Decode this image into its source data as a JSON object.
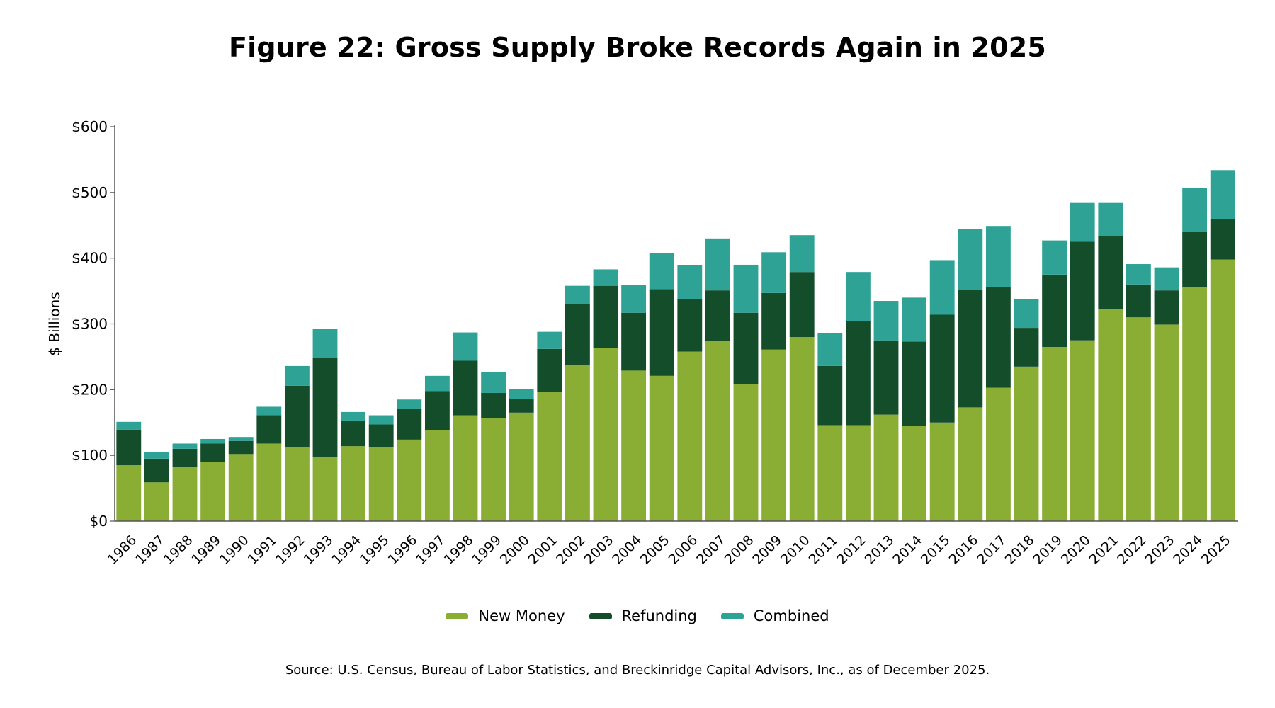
{
  "chart_data": {
    "type": "bar",
    "stacked": true,
    "title": "Figure 22: Gross Supply Broke Records Again in 2025",
    "ylabel": "$ Billions",
    "xlabel": "",
    "ylim": [
      0,
      600
    ],
    "yticks": [
      0,
      100,
      200,
      300,
      400,
      500,
      600
    ],
    "ytick_labels": [
      "$0",
      "$100",
      "$200",
      "$300",
      "$400",
      "$500",
      "$600"
    ],
    "grid": false,
    "legend_position": "bottom-center",
    "categories": [
      "1986",
      "1987",
      "1988",
      "1989",
      "1990",
      "1991",
      "1992",
      "1993",
      "1994",
      "1995",
      "1996",
      "1997",
      "1998",
      "1999",
      "2000",
      "2001",
      "2002",
      "2003",
      "2004",
      "2005",
      "2006",
      "2007",
      "2008",
      "2009",
      "2010",
      "2011",
      "2012",
      "2013",
      "2014",
      "2015",
      "2016",
      "2017",
      "2018",
      "2019",
      "2020",
      "2021",
      "2022",
      "2023",
      "2024",
      "2025"
    ],
    "series": [
      {
        "name": "New Money",
        "color": "#8aad33",
        "values": [
          85,
          59,
          82,
          90,
          102,
          118,
          112,
          97,
          114,
          112,
          124,
          138,
          161,
          157,
          165,
          197,
          238,
          263,
          229,
          221,
          258,
          274,
          208,
          261,
          280,
          146,
          146,
          162,
          145,
          150,
          173,
          203,
          235,
          265,
          275,
          322,
          310,
          299,
          356,
          398
        ]
      },
      {
        "name": "Refunding",
        "color": "#134d2a",
        "values": [
          54,
          36,
          28,
          28,
          20,
          43,
          94,
          151,
          39,
          35,
          47,
          60,
          83,
          38,
          21,
          65,
          92,
          95,
          88,
          132,
          80,
          77,
          109,
          86,
          99,
          90,
          158,
          113,
          128,
          164,
          179,
          153,
          59,
          110,
          150,
          112,
          50,
          52,
          84,
          61
        ]
      },
      {
        "name": "Combined",
        "color": "#2ea395",
        "values": [
          12,
          10,
          8,
          7,
          6,
          13,
          30,
          45,
          13,
          14,
          14,
          23,
          43,
          32,
          15,
          26,
          28,
          25,
          42,
          55,
          51,
          79,
          73,
          62,
          56,
          50,
          75,
          60,
          67,
          83,
          92,
          93,
          44,
          52,
          59,
          50,
          31,
          35,
          67,
          75
        ]
      }
    ]
  },
  "source_note": "Source: U.S. Census, Bureau of Labor Statistics, and Breckinridge Capital Advisors, Inc., as of December 2025."
}
